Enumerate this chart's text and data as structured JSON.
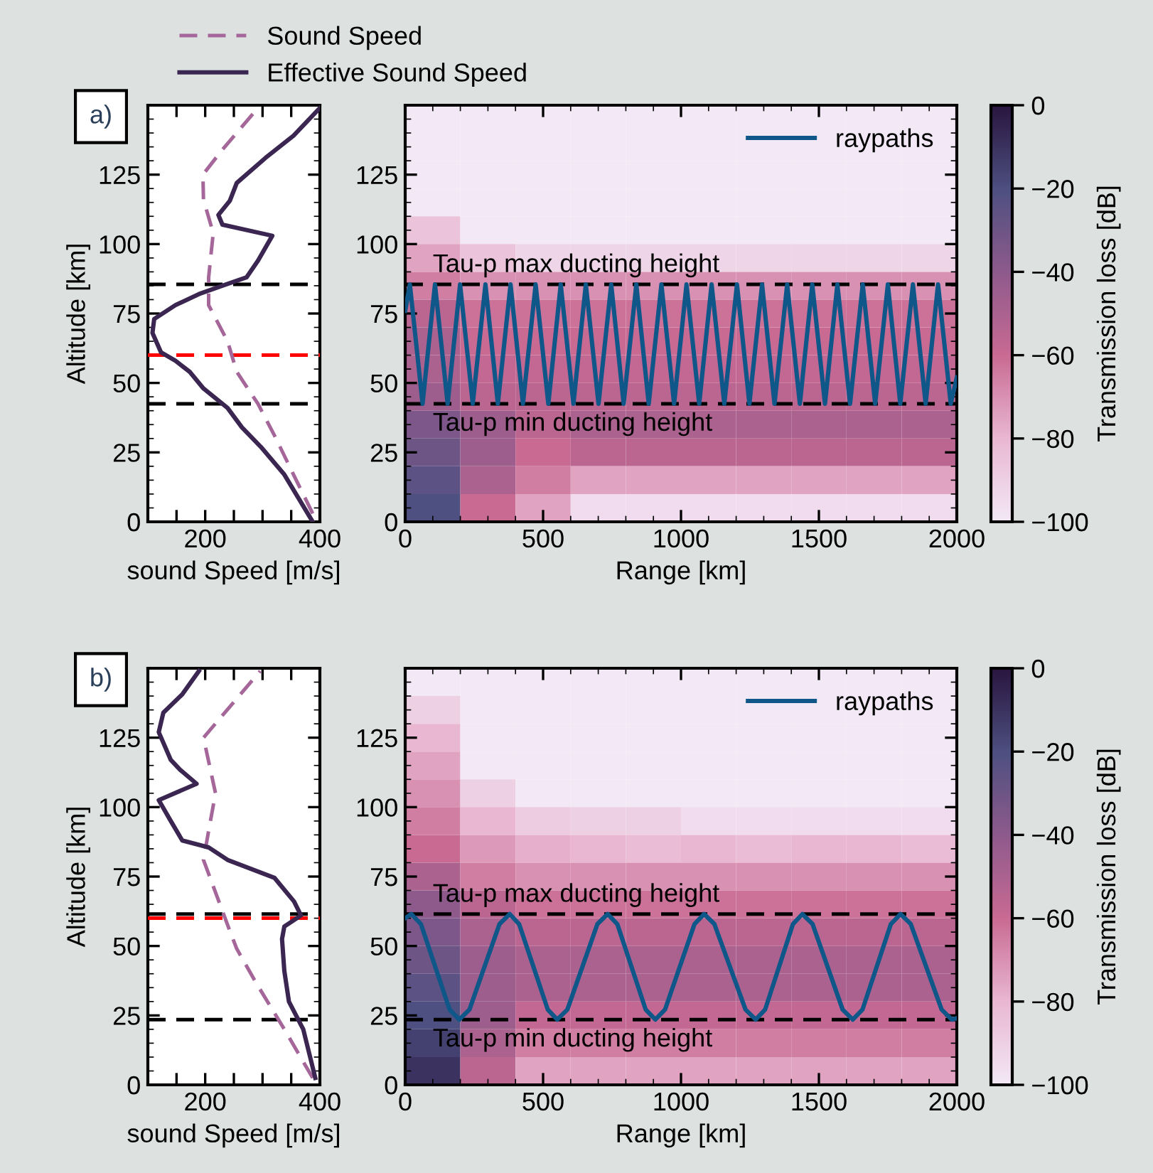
{
  "chart_data": [
    {
      "type": "line",
      "xlabel": "sound Speed [m/s]",
      "ylabel": "Altitude [km]",
      "xlim": [
        100,
        400
      ],
      "xticks": [
        {
          "value": 100,
          "label": null
        },
        {
          "value": 150,
          "label": null
        },
        200,
        {
          "value": 250,
          "label": null
        },
        {
          "value": 300,
          "label": null
        },
        {
          "value": 350,
          "label": null
        },
        400
      ],
      "ylim": [
        0,
        150
      ],
      "yticks": [
        0,
        25,
        50,
        75,
        100,
        125
      ],
      "legend": "top",
      "annotations": [
        "a)"
      ],
      "series": [
        {
          "name": "Sound Speed",
          "color": "#a5679a",
          "line_style": "dashed",
          "x": [
            387.5,
            354,
            321,
            292,
            255,
            239,
            206,
            206,
            214,
            197,
            196,
            230,
            292
          ],
          "values": [
            3,
            17,
            31,
            42.5,
            54,
            65,
            78,
            88,
            104,
            116,
            125,
            134,
            149
          ]
        },
        {
          "name": "Effective Sound Speed",
          "color": "#3b2651",
          "line_style": "solid",
          "x": [
            387.5,
            338,
            297,
            264,
            239,
            197,
            173,
            148,
            123,
            108,
            111,
            148,
            189,
            230,
            272,
            292,
            317,
            230,
            223,
            243,
            255,
            305,
            354,
            400
          ],
          "values": [
            0,
            17,
            27,
            34,
            41,
            48,
            54,
            58,
            61,
            68,
            73,
            78,
            82,
            85,
            88,
            94,
            103,
            107,
            110.5,
            115.6,
            122,
            131,
            139,
            149
          ]
        }
      ],
      "ref_lines": [
        {
          "axis": "y",
          "value": 85.5,
          "color": "#000000",
          "line_style": "dashed"
        },
        {
          "axis": "y",
          "value": 60,
          "color": "#ff0000",
          "line_style": "dashed"
        },
        {
          "axis": "y",
          "value": 42.5,
          "color": "#000000",
          "line_style": "dashed"
        }
      ]
    },
    {
      "type": "heatmap",
      "xlabel": "Range [km]",
      "xlim": [
        0,
        2000
      ],
      "xticks": [
        0,
        500,
        1000,
        1500,
        2000
      ],
      "ylim": [
        0,
        150
      ],
      "yticks": [
        0,
        25,
        50,
        75,
        100,
        125
      ],
      "clabel": "Transmission loss [dB]",
      "clim": [
        -100,
        0
      ],
      "cticks": [
        -100,
        -80,
        -60,
        -40,
        -20,
        0
      ],
      "legend": "top right",
      "cells": [
        [
          -100,
          -100,
          -100,
          -100,
          -100,
          -100,
          -100,
          -100,
          -100,
          -100
        ],
        [
          -100,
          -100,
          -100,
          -100,
          -100,
          -100,
          -100,
          -100,
          -100,
          -100
        ],
        [
          -100,
          -100,
          -100,
          -100,
          -100,
          -100,
          -100,
          -100,
          -100,
          -100
        ],
        [
          -100,
          -100,
          -100,
          -100,
          -100,
          -100,
          -100,
          -100,
          -100,
          -100
        ],
        [
          -85,
          -100,
          -100,
          -100,
          -100,
          -100,
          -100,
          -100,
          -100,
          -100
        ],
        [
          -75,
          -85,
          -92,
          -92,
          -92,
          -92,
          -92,
          -92,
          -92,
          -92
        ],
        [
          -65,
          -70,
          -70,
          -70,
          -70,
          -70,
          -70,
          -70,
          -70,
          -70
        ],
        [
          -55,
          -62,
          -62,
          -62,
          -62,
          -62,
          -62,
          -62,
          -62,
          -62
        ],
        [
          -50,
          -60,
          -60,
          -60,
          -60,
          -60,
          -60,
          -60,
          -60,
          -60
        ],
        [
          -50,
          -58,
          -58,
          -58,
          -58,
          -58,
          -58,
          -58,
          -58,
          -58
        ],
        [
          -45,
          -55,
          -55,
          -55,
          -55,
          -55,
          -55,
          -55,
          -55,
          -55
        ],
        [
          -35,
          -45,
          -55,
          -50,
          -50,
          -50,
          -50,
          -50,
          -50,
          -50
        ],
        [
          -30,
          -45,
          -60,
          -55,
          -55,
          -55,
          -55,
          -55,
          -55,
          -55
        ],
        [
          -25,
          -50,
          -65,
          -75,
          -75,
          -75,
          -75,
          -75,
          -75,
          -75
        ],
        [
          -20,
          -60,
          -75,
          -95,
          -95,
          -95,
          -95,
          -95,
          -95,
          -95
        ]
      ],
      "series": [
        {
          "type": "line",
          "name": "raypaths",
          "color": "#0e5788",
          "x": [
            0,
            17,
            63,
            108,
            154,
            199,
            245,
            291,
            336,
            382,
            427,
            473,
            519,
            564,
            610,
            655,
            701,
            747,
            792,
            838,
            883,
            929,
            975,
            1020,
            1066,
            1111,
            1157,
            1203,
            1248,
            1294,
            1339,
            1385,
            1431,
            1476,
            1522,
            1567,
            1613,
            1659,
            1704,
            1750,
            1795,
            1841,
            1887,
            1932,
            1978,
            2000
          ],
          "values": [
            76,
            85.5,
            42.5,
            85.5,
            42.5,
            85.5,
            42.5,
            85.5,
            42.5,
            85.5,
            42.5,
            85.5,
            42.5,
            85.5,
            42.5,
            85.5,
            42.5,
            85.5,
            42.5,
            85.5,
            42.5,
            85.5,
            42.5,
            85.5,
            42.5,
            85.5,
            42.5,
            85.5,
            42.5,
            85.5,
            42.5,
            85.5,
            42.5,
            85.5,
            42.5,
            85.5,
            42.5,
            85.5,
            42.5,
            85.5,
            42.5,
            85.5,
            42.5,
            85.5,
            42.5,
            52
          ]
        }
      ],
      "ref_lines": [
        {
          "axis": "y",
          "value": 85.5,
          "label": "Tau-p max ducting height",
          "color": "#000000",
          "line_style": "dashed"
        },
        {
          "axis": "y",
          "value": 42.5,
          "label": "Tau-p min ducting height",
          "color": "#000000",
          "line_style": "dashed"
        }
      ]
    },
    {
      "type": "line",
      "xlabel": "sound Speed [m/s]",
      "ylabel": "Altitude [km]",
      "xlim": [
        100,
        400
      ],
      "xticks": [
        {
          "value": 100,
          "label": null
        },
        {
          "value": 150,
          "label": null
        },
        200,
        {
          "value": 250,
          "label": null
        },
        {
          "value": 300,
          "label": null
        },
        {
          "value": 350,
          "label": null
        },
        400
      ],
      "ylim": [
        0,
        150
      ],
      "yticks": [
        0,
        25,
        50,
        75,
        100,
        125
      ],
      "annotations": [
        "b)"
      ],
      "series": [
        {
          "color": "#a5679a",
          "line_style": "dashed",
          "x": [
            387.5,
            338,
            288,
            255,
            239,
            197,
            206,
            218,
            197,
            230,
            296
          ],
          "values": [
            2.5,
            20,
            37,
            49,
            57.6,
            81,
            91.5,
            105,
            125,
            133,
            149
          ]
        },
        {
          "color": "#3b2651",
          "line_style": "solid",
          "x": [
            392,
            371,
            346,
            338,
            334,
            338,
            367,
            355,
            321,
            239,
            206,
            160,
            140,
            119,
            185,
            156,
            140,
            119,
            127,
            160,
            189
          ],
          "values": [
            2.5,
            20,
            30,
            41,
            52.5,
            57,
            61,
            66,
            74.5,
            81,
            85.5,
            88,
            95,
            102.5,
            108.4,
            113.5,
            117,
            127,
            134,
            140.6,
            149
          ]
        }
      ],
      "ref_lines": [
        {
          "axis": "y",
          "value": 60,
          "color": "#ff0000",
          "line_style": "dashed"
        },
        {
          "axis": "y",
          "value": 61.5,
          "color": "#000000",
          "line_style": "dashed"
        },
        {
          "axis": "y",
          "value": 23.5,
          "color": "#000000",
          "line_style": "dashed"
        }
      ]
    },
    {
      "type": "heatmap",
      "xlabel": "Range [km]",
      "xlim": [
        0,
        2000
      ],
      "xticks": [
        0,
        500,
        1000,
        1500,
        2000
      ],
      "ylim": [
        0,
        150
      ],
      "yticks": [
        0,
        25,
        50,
        75,
        100,
        125
      ],
      "clabel": "Transmission loss [dB]",
      "clim": [
        -100,
        0
      ],
      "cticks": [
        -100,
        -80,
        -60,
        -40,
        -20,
        0
      ],
      "legend": "top right",
      "cells": [
        [
          -100,
          -100,
          -100,
          -100,
          -100,
          -100,
          -100,
          -100,
          -100,
          -100
        ],
        [
          -90,
          -100,
          -100,
          -100,
          -100,
          -100,
          -100,
          -100,
          -100,
          -100
        ],
        [
          -80,
          -100,
          -100,
          -100,
          -100,
          -100,
          -100,
          -100,
          -100,
          -100
        ],
        [
          -75,
          -100,
          -100,
          -100,
          -100,
          -100,
          -100,
          -100,
          -100,
          -100
        ],
        [
          -70,
          -90,
          -100,
          -100,
          -100,
          -100,
          -100,
          -100,
          -100,
          -100
        ],
        [
          -65,
          -80,
          -88,
          -90,
          -90,
          -95,
          -95,
          -95,
          -95,
          -95
        ],
        [
          -60,
          -72,
          -78,
          -80,
          -82,
          -80,
          -82,
          -80,
          -80,
          -82
        ],
        [
          -50,
          -65,
          -70,
          -70,
          -70,
          -70,
          -70,
          -70,
          -70,
          -70
        ],
        [
          -40,
          -55,
          -62,
          -62,
          -62,
          -62,
          -62,
          -62,
          -62,
          -62
        ],
        [
          -35,
          -50,
          -55,
          -55,
          -55,
          -55,
          -55,
          -55,
          -55,
          -55
        ],
        [
          -30,
          -45,
          -50,
          -50,
          -50,
          -50,
          -50,
          -50,
          -50,
          -50
        ],
        [
          -25,
          -45,
          -50,
          -50,
          -50,
          -50,
          -50,
          -50,
          -50,
          -50
        ],
        [
          -20,
          -45,
          -58,
          -58,
          -58,
          -58,
          -58,
          -58,
          -58,
          -58
        ],
        [
          -15,
          -50,
          -65,
          -65,
          -65,
          -65,
          -65,
          -65,
          -65,
          -65
        ],
        [
          -10,
          -55,
          -75,
          -75,
          -75,
          -75,
          -75,
          -75,
          -75,
          -75
        ]
      ],
      "series": [
        {
          "type": "line",
          "name": "raypaths",
          "color": "#0e5788",
          "x": [
            0,
            22,
            57,
            161,
            196,
            233,
            342,
            379,
            413,
            517,
            551,
            588,
            697,
            734,
            769,
            872,
            907,
            942,
            1049,
            1084,
            1121,
            1234,
            1271,
            1305,
            1406,
            1440,
            1477,
            1586,
            1623,
            1658,
            1761,
            1796,
            1833,
            1945,
            1982,
            2000
          ],
          "values": [
            60,
            61.5,
            57.9,
            27.1,
            23.5,
            27.1,
            57.9,
            61.5,
            57.9,
            27.1,
            23.5,
            27.1,
            57.9,
            61.5,
            57.9,
            27.1,
            23.5,
            27.1,
            57.9,
            61.5,
            57.9,
            27.1,
            23.5,
            27.1,
            57.9,
            61.5,
            57.9,
            27.1,
            23.5,
            27.1,
            57.9,
            61.5,
            57.9,
            27.1,
            23.5,
            24
          ]
        }
      ],
      "ref_lines": [
        {
          "axis": "y",
          "value": 61.5,
          "label": "Tau-p max ducting height",
          "color": "#000000",
          "line_style": "dashed"
        },
        {
          "axis": "y",
          "value": 23.5,
          "label": "Tau-p min ducting height",
          "color": "#000000",
          "line_style": "dashed"
        }
      ]
    }
  ]
}
